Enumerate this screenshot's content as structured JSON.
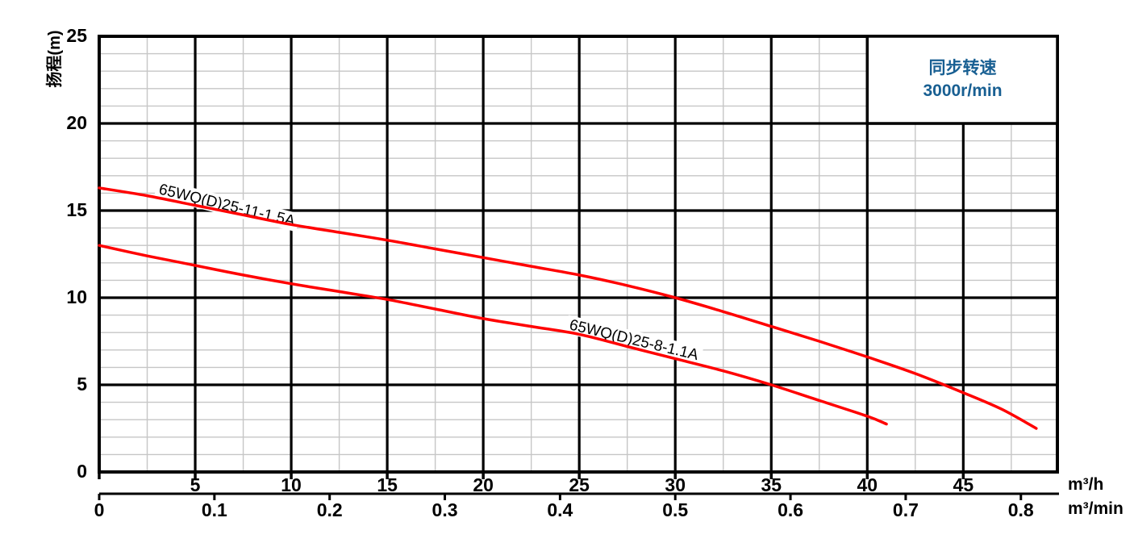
{
  "chart_data": {
    "type": "line",
    "title": "",
    "ylabel": "扬程(m)",
    "grid": "major-and-minor",
    "y_axis": {
      "ticks": [
        0,
        5,
        10,
        15,
        20,
        25
      ],
      "range": [
        0,
        25
      ],
      "minor_step": 1
    },
    "x_axis_primary": {
      "unit": "m³/h",
      "ticks": [
        5,
        10,
        15,
        20,
        25,
        30,
        35,
        40,
        45
      ],
      "range": [
        0,
        49.9
      ],
      "minor_step": 2.5
    },
    "x_axis_secondary": {
      "unit": "m³/min",
      "tick_labels": [
        "0",
        "0.1",
        "0.2",
        "0.3",
        "0.4",
        "0.5",
        "0.6",
        "0.7",
        "0.8"
      ],
      "tick_step": 0.1,
      "scale_to_primary": 60
    },
    "series": [
      {
        "name": "65WQ(D)25-11-1.5A",
        "points": [
          [
            0,
            16.3
          ],
          [
            2.5,
            15.85
          ],
          [
            5,
            15.3
          ],
          [
            7.5,
            14.75
          ],
          [
            10,
            14.2
          ],
          [
            12.5,
            13.75
          ],
          [
            15,
            13.3
          ],
          [
            17.5,
            12.8
          ],
          [
            20,
            12.3
          ],
          [
            22.5,
            11.8
          ],
          [
            25,
            11.3
          ],
          [
            27.5,
            10.7
          ],
          [
            30,
            10.0
          ],
          [
            32.5,
            9.2
          ],
          [
            35,
            8.35
          ],
          [
            37.5,
            7.5
          ],
          [
            40,
            6.6
          ],
          [
            42.5,
            5.65
          ],
          [
            45,
            4.55
          ],
          [
            47,
            3.6
          ],
          [
            48.8,
            2.5
          ]
        ]
      },
      {
        "name": "65WQ(D)25-8-1.1A",
        "points": [
          [
            0,
            13.0
          ],
          [
            2.5,
            12.4
          ],
          [
            5,
            11.85
          ],
          [
            7.5,
            11.3
          ],
          [
            10,
            10.8
          ],
          [
            12.5,
            10.35
          ],
          [
            15,
            9.9
          ],
          [
            17.5,
            9.35
          ],
          [
            20,
            8.8
          ],
          [
            22.5,
            8.35
          ],
          [
            25,
            7.9
          ],
          [
            27.5,
            7.2
          ],
          [
            30,
            6.5
          ],
          [
            32.5,
            5.8
          ],
          [
            35,
            5.0
          ],
          [
            37.5,
            4.1
          ],
          [
            40,
            3.2
          ],
          [
            41,
            2.75
          ]
        ]
      }
    ],
    "legend": {
      "position": "top-right",
      "line1": "同步转速",
      "line2": "3000r/min"
    },
    "colors": {
      "curve": "#ff0000",
      "axis": "#000000",
      "minor_grid": "#c6c6c6",
      "legend_text": "#185f92"
    }
  }
}
